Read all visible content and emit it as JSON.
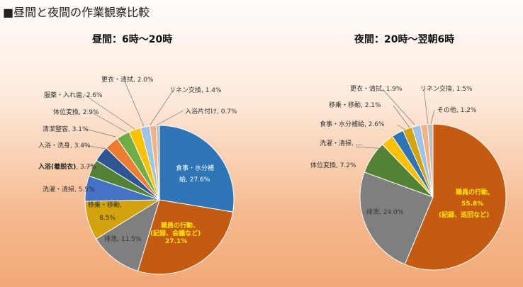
{
  "page_title": "■昼間と夜間の作業観察比較",
  "colors": {
    "blue": "#2e75b6",
    "orange_red": "#c55a11",
    "gray": "#7f7f7f",
    "gold": "#d4a20a",
    "teal_blue": "#4472c4",
    "green": "#548235",
    "dark_blue": "#2f5597",
    "orange": "#ed7d31",
    "dark_green": "#70ad47",
    "yellow": "#ffc000",
    "light_blue": "#9dc3e6",
    "peach": "#f4b183",
    "light_gray": "#bfbfbf"
  },
  "chart_data": [
    {
      "type": "pie",
      "title": "昼間：6時〜20時",
      "slices": [
        {
          "label": "食事・水分補給",
          "value": 27.6,
          "text": "食事・水分補給, 27.6%",
          "color": "#2e75b6"
        },
        {
          "label": "職員の行動、(記録、会議など)",
          "value": 27.1,
          "text": "職員の行動、(記録、会議など) 27.1%",
          "color": "#c55a11"
        },
        {
          "label": "排泄",
          "value": 11.5,
          "text": "排泄, 11.5%",
          "color": "#7f7f7f"
        },
        {
          "label": "移乗・移動",
          "value": 8.5,
          "text": "移乗・移動, 8.5%",
          "color": "#d4a20a"
        },
        {
          "label": "洗濯・清掃",
          "value": 5.5,
          "text": "洗濯・清掃, 5.5%",
          "color": "#4472c4"
        },
        {
          "label": "入浴(着脱衣)",
          "value": 3.7,
          "text": "入浴(着脱衣), 3.7%",
          "color": "#548235"
        },
        {
          "label": "入浴・洗身",
          "value": 3.4,
          "text": "入浴・洗身, 3.4%",
          "color": "#2f5597"
        },
        {
          "label": "清潔整容",
          "value": 3.1,
          "text": "清潔整容, 3.1%",
          "color": "#ed7d31"
        },
        {
          "label": "体位変換",
          "value": 2.9,
          "text": "体位変換, 2.9%",
          "color": "#70ad47"
        },
        {
          "label": "服薬・入れ歯",
          "value": 2.6,
          "text": "服薬・入れ歯, 2.6%",
          "color": "#ffc000"
        },
        {
          "label": "更衣・清拭",
          "value": 2.0,
          "text": "更衣・清拭, 2.0%",
          "color": "#9dc3e6"
        },
        {
          "label": "リネン交換",
          "value": 1.4,
          "text": "リネン交換, 1.4%",
          "color": "#f4b183"
        },
        {
          "label": "入浴片付け",
          "value": 0.7,
          "text": "入浴片付け, 0.7%",
          "color": "#bfbfbf"
        }
      ]
    },
    {
      "type": "pie",
      "title": "夜間：20時〜翌朝6時",
      "slices": [
        {
          "label": "職員の行動、(記録、巡回など)",
          "value": 55.8,
          "text": "職員の行動、55.8% (記録、巡回など)",
          "color": "#c55a11"
        },
        {
          "label": "排泄",
          "value": 24.0,
          "text": "排泄, 24.0%",
          "color": "#7f7f7f"
        },
        {
          "label": "体位変換",
          "value": 7.2,
          "text": "体位変換, 7.2%",
          "color": "#548235"
        },
        {
          "label": "洗濯・清掃",
          "value": 2.8,
          "text": "洗濯・清掃,…",
          "color": "#ffc000"
        },
        {
          "label": "食事・水分補給",
          "value": 2.6,
          "text": "食事・水分補給, 2.6%",
          "color": "#2e75b6"
        },
        {
          "label": "移乗・移動",
          "value": 2.1,
          "text": "移乗・移動, 2.1%",
          "color": "#d4a20a"
        },
        {
          "label": "更衣・清拭",
          "value": 1.9,
          "text": "更衣・清拭, 1.9%",
          "color": "#9dc3e6"
        },
        {
          "label": "リネン交換",
          "value": 1.5,
          "text": "リネン交換, 1.5%",
          "color": "#f4b183"
        },
        {
          "label": "その他",
          "value": 1.2,
          "text": "その他, 1.2%",
          "color": "#bfbfbf"
        }
      ]
    }
  ],
  "labels": {
    "day": {
      "meal_a": "食事・水分補",
      "meal_b": "給, 27.6%",
      "staff_a": "職員の行動、",
      "staff_b": "(記録、会議など)",
      "staff_c": "27.1%",
      "toilet": "排泄, 11.5%",
      "transfer_a": "移乗・移動,",
      "transfer_b": "8.5%",
      "laundry": "洗濯・清掃, 5.5%",
      "bath_dress_bold": "入浴(着脱衣)",
      "bath_dress_val": ", 3.7%",
      "bath_wash": "入浴・洗身, 3.4%",
      "groom": "清潔整容, 3.1%",
      "position": "体位変換, 2.9%",
      "meds": "服薬・入れ歯, 2.6%",
      "change": "更衣・清拭, 2.0%",
      "linen": "リネン交換, 1.4%",
      "bath_clean": "入浴片付け, 0.7%"
    },
    "night": {
      "staff_a": "職員の行動,",
      "staff_b": "55.8%",
      "staff_c": "(記録、巡回など)",
      "toilet": "排泄, 24.0%",
      "position": "体位変換, 7.2%",
      "laundry": "洗濯・清掃, …",
      "meal": "食事・水分補給, 2.6%",
      "transfer": "移乗・移動, 2.1%",
      "change": "更衣・清拭, 1.9%",
      "linen": "リネン交換, 1.5%",
      "other": "その他, 1.2%"
    }
  }
}
